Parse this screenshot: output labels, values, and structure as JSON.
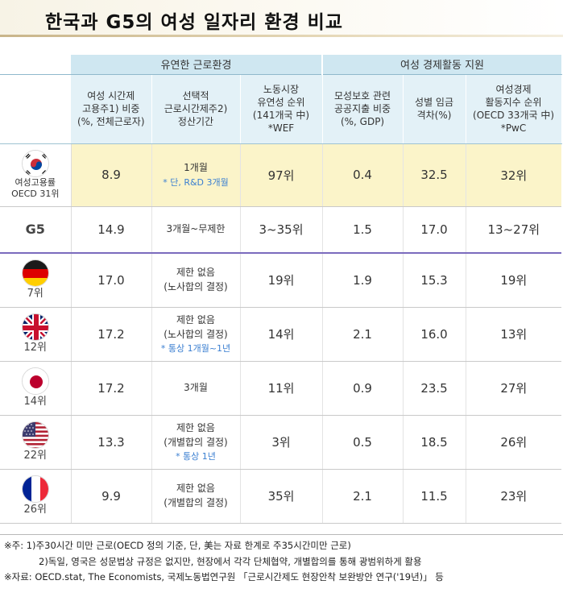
{
  "title": "한국과 G5의 여성 일자리 환경 비교",
  "group_headers": [
    "유연한 근로환경",
    "여성 경제활동 지원"
  ],
  "columns": [
    [
      "여성 시간제",
      "고용주1) 비중",
      "(%, 전체근로자)"
    ],
    [
      "선택적",
      "근로시간제주2)",
      "정산기간"
    ],
    [
      "노동시장",
      "유연성 순위",
      "(141개국 中)",
      "*WEF"
    ],
    [
      "모성보호 관련",
      "공공지출 비중",
      "(%, GDP)"
    ],
    [
      "성별 임금",
      "격차(%)"
    ],
    [
      "여성경제",
      "활동지수 순위",
      "(OECD 33개국 中)",
      "*PwC"
    ]
  ],
  "korea": {
    "label": "여성고용률",
    "sublabel": "OECD 31위",
    "values": [
      "8.9",
      "1개월",
      "97위",
      "0.4",
      "32.5",
      "32위"
    ],
    "note": "* 단, R&D 3개월"
  },
  "g5": {
    "label": "G5",
    "values": [
      "14.9",
      "3개월~무제한",
      "3~35위",
      "1.5",
      "17.0",
      "13~27위"
    ]
  },
  "countries": [
    {
      "flag": "germany-flag-icon",
      "rank": "7위",
      "values": [
        "17.0",
        "제한 없음",
        "19위",
        "1.9",
        "15.3",
        "19위"
      ],
      "sub": "(노사합의 결정)",
      "note": ""
    },
    {
      "flag": "uk-flag-icon",
      "rank": "12위",
      "values": [
        "17.2",
        "제한 없음",
        "14위",
        "2.1",
        "16.0",
        "13위"
      ],
      "sub": "(노사합의 결정)",
      "note": "* 통상 1개월~1년"
    },
    {
      "flag": "japan-flag-icon",
      "rank": "14위",
      "values": [
        "17.2",
        "3개월",
        "11위",
        "0.9",
        "23.5",
        "27위"
      ],
      "sub": "",
      "note": ""
    },
    {
      "flag": "usa-flag-icon",
      "rank": "22위",
      "values": [
        "13.3",
        "제한 없음",
        "3위",
        "0.5",
        "18.5",
        "26위"
      ],
      "sub": "(개별합의 결정)",
      "note": "* 통상 1년"
    },
    {
      "flag": "france-flag-icon",
      "rank": "26위",
      "values": [
        "9.9",
        "제한 없음",
        "35위",
        "2.1",
        "11.5",
        "23위"
      ],
      "sub": "(개별합의 결정)",
      "note": ""
    }
  ],
  "footnotes": [
    "※주: 1)주30시간 미만 근로(OECD 정의 기준, 단, 美는 자료 한계로 주35시간미만 근로)",
    "2)독일, 영국은 성문법상 규정은 없지만, 현장에서 각각 단체협약, 개별합의를 통해 광범위하게 활용",
    "※자료: OECD.stat, The Economists, 국제노동법연구원 「근로시간제도 현장안착 보완방안 연구('19년)」 등"
  ],
  "colors": {
    "group_header_bg": "#cfe7f1",
    "column_header_bg": "#e3f1f7",
    "korea_row_bg": "#fbf4c9",
    "note_blue": "#3b7fd1",
    "divider_purple": "#7b6bbd"
  }
}
